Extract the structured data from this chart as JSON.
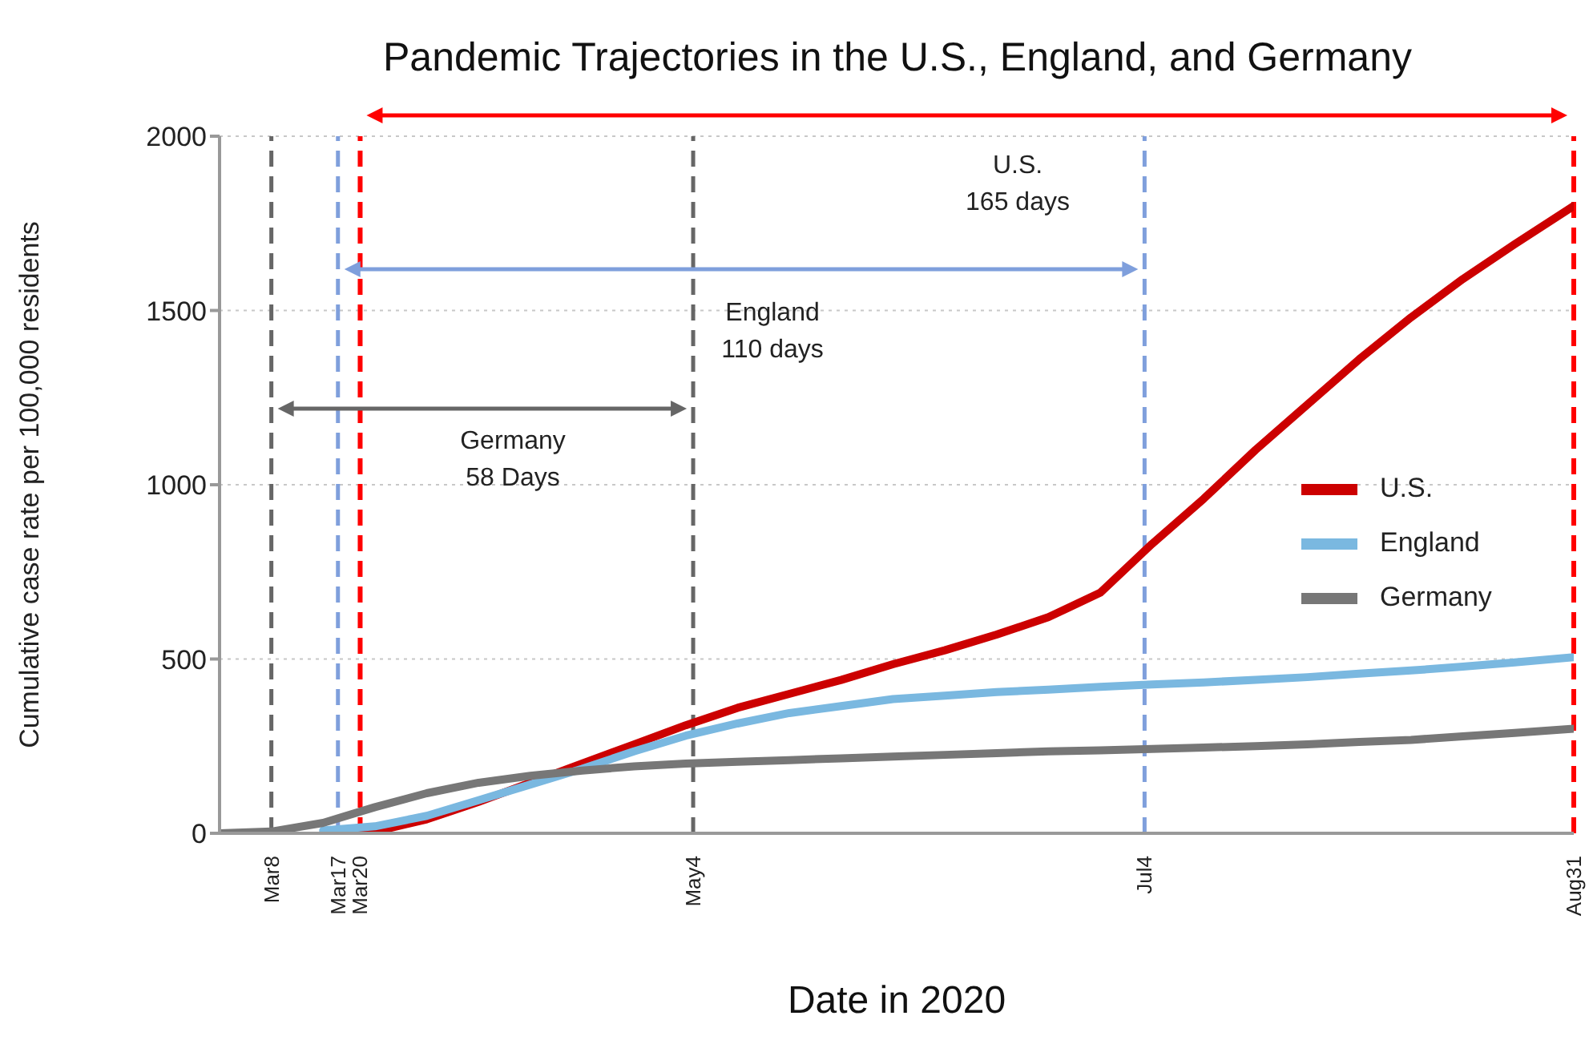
{
  "chart_data": {
    "type": "line",
    "title": "Pandemic Trajectories in the U.S., England, and Germany",
    "xlabel": "Date in 2020",
    "ylabel": "Cumulative case rate per 100,000 residents",
    "x": [
      "2020-03-01",
      "2020-03-08",
      "2020-03-15",
      "2020-03-22",
      "2020-03-29",
      "2020-04-05",
      "2020-04-12",
      "2020-04-19",
      "2020-04-26",
      "2020-05-03",
      "2020-05-10",
      "2020-05-17",
      "2020-05-24",
      "2020-05-31",
      "2020-06-07",
      "2020-06-14",
      "2020-06-21",
      "2020-06-28",
      "2020-07-05",
      "2020-07-12",
      "2020-07-19",
      "2020-07-26",
      "2020-08-02",
      "2020-08-09",
      "2020-08-16",
      "2020-08-23",
      "2020-08-31"
    ],
    "series": [
      {
        "name": "U.S.",
        "color": "#cc0000",
        "values": [
          null,
          null,
          0,
          5,
          40,
          90,
          145,
          200,
          255,
          310,
          360,
          400,
          440,
          485,
          525,
          570,
          620,
          690,
          830,
          960,
          1100,
          1230,
          1360,
          1480,
          1590,
          1690,
          1800
        ]
      },
      {
        "name": "England",
        "color": "#7ab8e0",
        "values": [
          null,
          null,
          8,
          20,
          50,
          95,
          140,
          185,
          235,
          280,
          315,
          345,
          365,
          385,
          395,
          405,
          412,
          420,
          427,
          433,
          440,
          448,
          458,
          467,
          478,
          490,
          505
        ]
      },
      {
        "name": "Germany",
        "color": "#777777",
        "values": [
          0,
          5,
          30,
          75,
          115,
          145,
          165,
          180,
          192,
          200,
          205,
          210,
          215,
          220,
          225,
          230,
          235,
          238,
          242,
          246,
          250,
          255,
          262,
          268,
          278,
          288,
          300
        ]
      }
    ],
    "xlim": [
      "2020-03-01",
      "2020-08-31"
    ],
    "xticks": [
      {
        "value": "2020-03-08",
        "label": "Mar8"
      },
      {
        "value": "2020-03-17",
        "label": "Mar17"
      },
      {
        "value": "2020-03-20",
        "label": "Mar20"
      },
      {
        "value": "2020-05-04",
        "label": "May4"
      },
      {
        "value": "2020-07-04",
        "label": "Jul4"
      },
      {
        "value": "2020-08-31",
        "label": "Aug31"
      }
    ],
    "ylim": [
      0,
      2000
    ],
    "yticks": [
      0,
      500,
      1000,
      1500,
      2000
    ],
    "ref_lines": [
      {
        "axis": "x",
        "value": "2020-03-08",
        "color": "#666666",
        "line_style": "dashed"
      },
      {
        "axis": "x",
        "value": "2020-03-17",
        "color": "#7f9fdc",
        "line_style": "dashed"
      },
      {
        "axis": "x",
        "value": "2020-03-20",
        "color": "#ff0000",
        "line_style": "dashed"
      },
      {
        "axis": "x",
        "value": "2020-05-04",
        "color": "#666666",
        "line_style": "dashed"
      },
      {
        "axis": "x",
        "value": "2020-07-04",
        "color": "#7f9fdc",
        "line_style": "dashed"
      },
      {
        "axis": "x",
        "value": "2020-08-31",
        "color": "#ff0000",
        "line_style": "dashed"
      }
    ],
    "annotations": [
      "Germany\n58 Days",
      "England\n110 days",
      "U.S.\n165 days"
    ],
    "grid": "y",
    "legend": "center right",
    "marker": "none",
    "line_style": "solid"
  }
}
